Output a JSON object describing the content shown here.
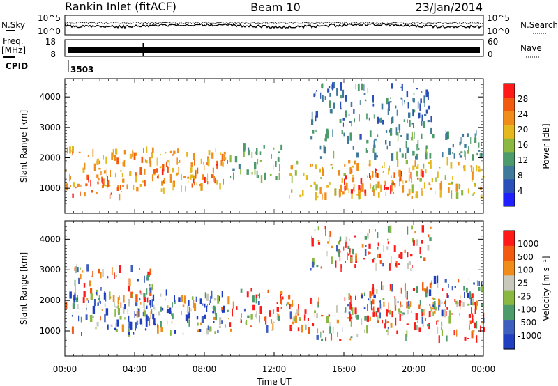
{
  "header": {
    "station": "Rankin Inlet (fitACF)",
    "beam": "Beam 10",
    "date": "23/Jan/2014"
  },
  "top_panels": {
    "nsky_label": "N.Sky",
    "nsearch_label": "N.Search",
    "freq_label": "Freq.",
    "freq_unit": "[MHz]",
    "nave_label": "Nave",
    "cpid_label": "CPID",
    "cpid_value": "3503",
    "noise_ticks": [
      "10^5",
      "10^0"
    ],
    "freq_ticks": [
      "18",
      "8"
    ],
    "nave_ticks": [
      "60",
      "0"
    ]
  },
  "xaxis": {
    "label": "Time UT",
    "ticks": [
      "00:00",
      "04:00",
      "08:00",
      "12:00",
      "16:00",
      "20:00",
      "00:00"
    ]
  },
  "power_panel": {
    "ylabel": "Slant Range [km]",
    "yticks": [
      "1000",
      "2000",
      "3000",
      "4000"
    ],
    "colorbar_label": "Power [dB]",
    "colorbar_ticks": [
      "4",
      "8",
      "12",
      "16",
      "20",
      "24",
      "28"
    ]
  },
  "velocity_panel": {
    "ylabel": "Slant Range [km]",
    "yticks": [
      "1000",
      "2000",
      "3000",
      "4000"
    ],
    "colorbar_label": "Velocity [m s⁻¹]",
    "colorbar_ticks": [
      "1000",
      "500",
      "100",
      "25",
      "-25",
      "-100",
      "-500",
      "-1000"
    ]
  },
  "chart_data": [
    {
      "type": "heatmap",
      "name": "Power",
      "x_range_hours": [
        0,
        24
      ],
      "y_range_km": [
        180,
        4600
      ],
      "colorbar_range_db": [
        0,
        32
      ],
      "colors": [
        "#1f1fff",
        "#2a4fb8",
        "#3f7a9a",
        "#4d9a6a",
        "#8ab840",
        "#e6b820",
        "#f08c1a",
        "#f25a10",
        "#ff1a1a"
      ],
      "blobs": [
        {
          "t0": 0.0,
          "t1": 9.2,
          "r0": 900,
          "r1": 2300,
          "level": 22
        },
        {
          "t0": 0.2,
          "t1": 3.5,
          "r0": 700,
          "r1": 1400,
          "level": 27
        },
        {
          "t0": 5.0,
          "t1": 8.8,
          "r0": 1200,
          "r1": 1800,
          "level": 26
        },
        {
          "t0": 9.3,
          "t1": 12.5,
          "r0": 1300,
          "r1": 2400,
          "level": 14
        },
        {
          "t0": 12.8,
          "t1": 24.0,
          "r0": 700,
          "r1": 1900,
          "level": 20
        },
        {
          "t0": 16.0,
          "t1": 20.5,
          "r0": 800,
          "r1": 1700,
          "level": 27
        },
        {
          "t0": 14.0,
          "t1": 24.0,
          "r0": 2000,
          "r1": 2900,
          "level": 11
        },
        {
          "t0": 14.0,
          "t1": 21.0,
          "r0": 3000,
          "r1": 4400,
          "level": 8
        }
      ]
    },
    {
      "type": "heatmap",
      "name": "Velocity",
      "x_range_hours": [
        0,
        24
      ],
      "y_range_km": [
        180,
        4600
      ],
      "colorbar_range": [
        -1000,
        1000
      ],
      "colors": [
        "#ff1a1a",
        "#f25a10",
        "#f08c1a",
        "#c8c8bc",
        "#8ab840",
        "#4d9a6a",
        "#3f5fbf",
        "#1f3fc0"
      ],
      "blobs": [
        {
          "t0": 0.0,
          "t1": 9.2,
          "r0": 900,
          "r1": 2300,
          "level": 5
        },
        {
          "t0": 3.0,
          "t1": 8.8,
          "r0": 1200,
          "r1": 2100,
          "level": 6
        },
        {
          "t0": 9.3,
          "t1": 13.5,
          "r0": 1000,
          "r1": 2400,
          "level": 2
        },
        {
          "t0": 12.8,
          "t1": 24.0,
          "r0": 700,
          "r1": 2000,
          "level": 2
        },
        {
          "t0": 16.0,
          "t1": 22.0,
          "r0": 1300,
          "r1": 2500,
          "level": 3
        },
        {
          "t0": 20.0,
          "t1": 24.0,
          "r0": 1700,
          "r1": 2700,
          "level": 4
        },
        {
          "t0": 0.5,
          "t1": 5.0,
          "r0": 2000,
          "r1": 3100,
          "level": 3
        },
        {
          "t0": 14.0,
          "t1": 21.0,
          "r0": 3000,
          "r1": 4400,
          "level": 2
        }
      ]
    }
  ]
}
